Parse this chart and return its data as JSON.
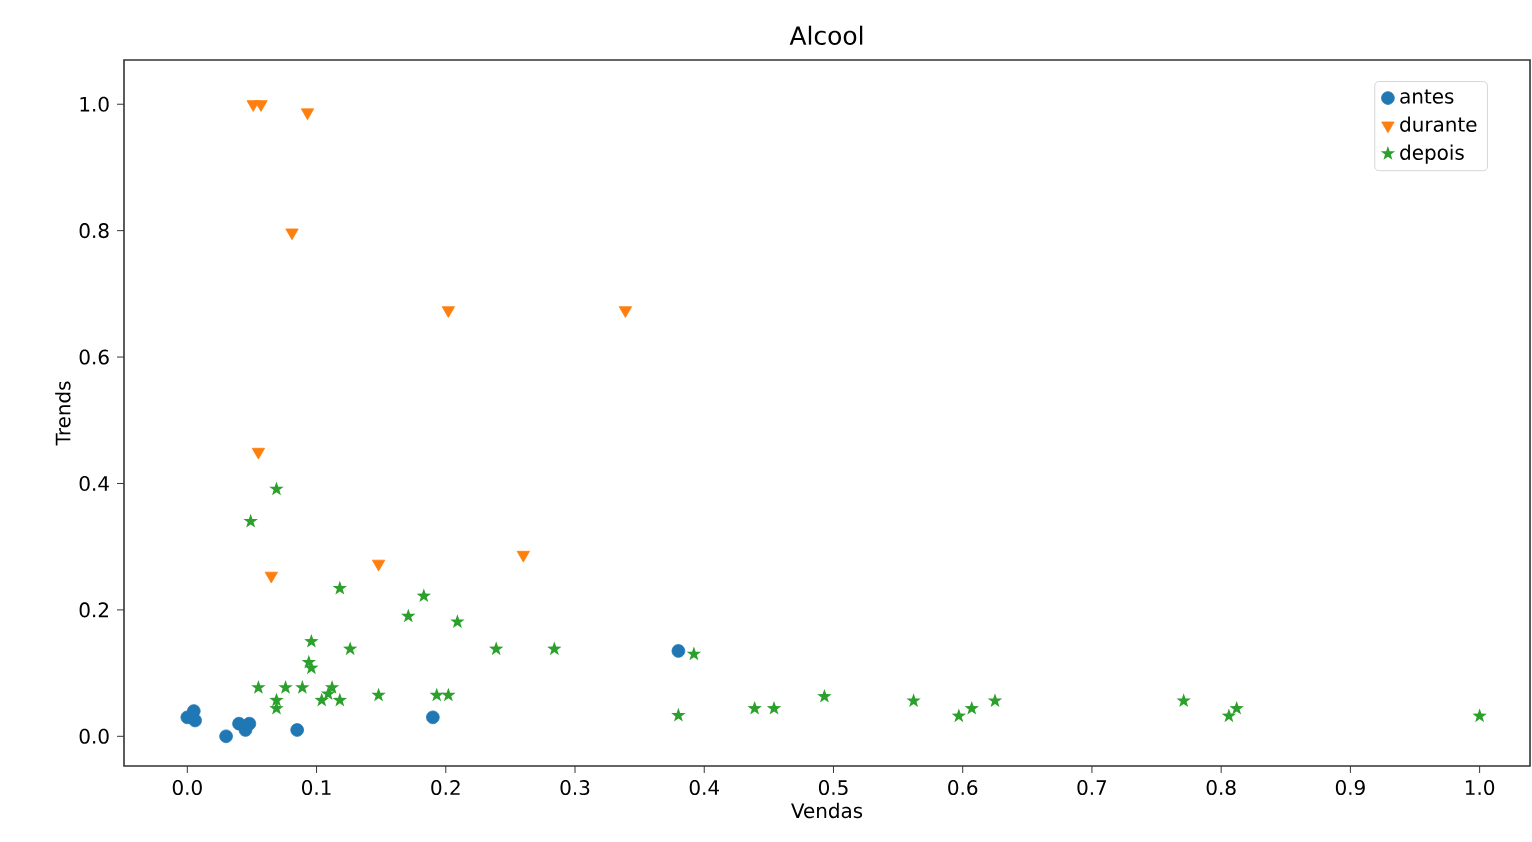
{
  "chart_data": {
    "type": "scatter",
    "title": "Alcool",
    "xlabel": "Vendas",
    "ylabel": "Trends",
    "xlim": [
      -0.049,
      1.039
    ],
    "ylim": [
      -0.047,
      1.07
    ],
    "xticks": [
      {
        "value": 0,
        "label": "0.0"
      },
      0.1,
      0.2,
      0.3,
      0.4,
      0.5,
      0.6,
      0.7,
      0.8,
      0.9,
      {
        "value": 1,
        "label": "1.0"
      }
    ],
    "yticks": [
      {
        "value": 0,
        "label": "0.0"
      },
      0.2,
      0.4,
      0.6,
      0.8,
      {
        "value": 1,
        "label": "1.0"
      }
    ],
    "legend": "top right",
    "grid": false,
    "series": [
      {
        "name": "antes",
        "color": "#1f77b4",
        "marker": "circle",
        "x": [
          0.0,
          0.005,
          0.006,
          0.03,
          0.04,
          0.048,
          0.045,
          0.085,
          0.19,
          0.38
        ],
        "values": [
          0.03,
          0.04,
          0.025,
          0.0,
          0.02,
          0.02,
          0.01,
          0.01,
          0.03,
          0.135
        ]
      },
      {
        "name": "durante",
        "color": "#ff7f0e",
        "marker": "triangle",
        "x": [
          0.051,
          0.057,
          0.093,
          0.081,
          0.202,
          0.339,
          0.055,
          0.065,
          0.148,
          0.26
        ],
        "values": [
          1.0,
          1.0,
          0.987,
          0.797,
          0.674,
          0.674,
          0.45,
          0.254,
          0.273,
          0.287
        ]
      },
      {
        "name": "depois",
        "color": "#2ca02c",
        "marker": "star",
        "x": [
          0.069,
          0.049,
          0.118,
          0.183,
          0.171,
          0.209,
          0.096,
          0.126,
          0.239,
          0.284,
          0.094,
          0.096,
          0.392,
          0.055,
          0.076,
          0.089,
          0.112,
          0.069,
          0.069,
          0.104,
          0.109,
          0.118,
          0.148,
          0.193,
          0.202,
          0.38,
          0.439,
          0.454,
          0.493,
          0.562,
          0.597,
          0.607,
          0.625,
          0.771,
          0.806,
          0.812,
          1.0
        ],
        "values": [
          0.391,
          0.34,
          0.234,
          0.222,
          0.19,
          0.181,
          0.15,
          0.138,
          0.138,
          0.138,
          0.117,
          0.108,
          0.13,
          0.077,
          0.077,
          0.077,
          0.077,
          0.057,
          0.044,
          0.057,
          0.067,
          0.057,
          0.065,
          0.065,
          0.065,
          0.033,
          0.044,
          0.044,
          0.063,
          0.056,
          0.032,
          0.044,
          0.056,
          0.056,
          0.032,
          0.044,
          0.032
        ]
      }
    ]
  }
}
